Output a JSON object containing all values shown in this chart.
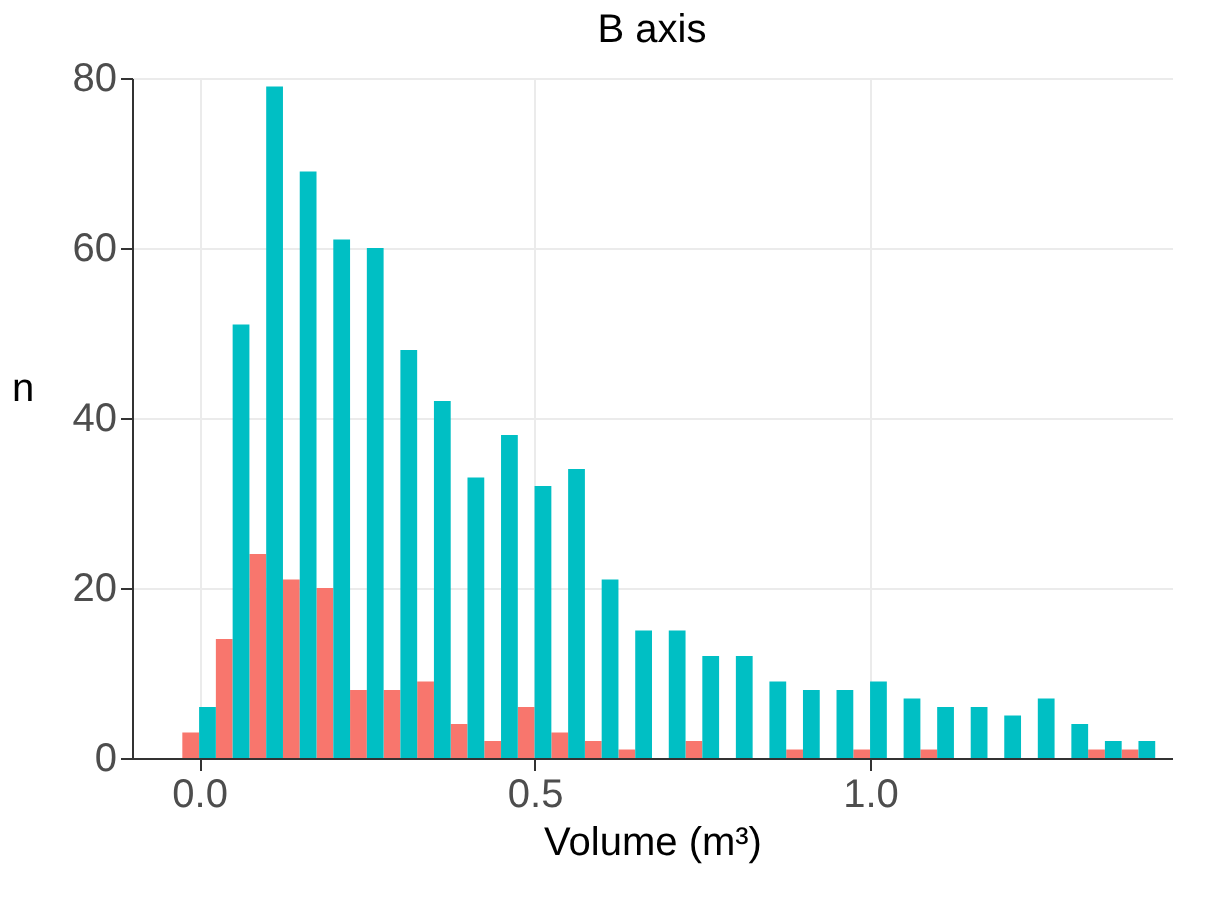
{
  "chart_data": {
    "type": "histogram",
    "title": "B axis",
    "xlabel": "Volume (m³)",
    "ylabel": "n",
    "bins": [
      -0.025,
      0.025,
      0.075,
      0.125,
      0.175,
      0.225,
      0.275,
      0.325,
      0.375,
      0.425,
      0.475,
      0.525,
      0.575,
      0.625,
      0.675,
      0.725,
      0.775,
      0.825,
      0.875,
      0.925,
      0.975,
      1.025,
      1.075,
      1.125,
      1.175,
      1.225,
      1.275,
      1.325,
      1.375,
      1.425
    ],
    "series": [
      {
        "color": "#f8766d",
        "values": [
          3,
          14,
          24,
          21,
          20,
          8,
          8,
          9,
          4,
          2,
          6,
          3,
          2,
          1,
          0,
          2,
          0,
          0,
          1,
          0,
          1,
          0,
          1,
          0,
          0,
          0,
          0,
          1,
          1
        ]
      },
      {
        "color": "#00bfc4",
        "values": [
          6,
          51,
          79,
          69,
          61,
          60,
          48,
          42,
          33,
          38,
          32,
          34,
          21,
          15,
          15,
          12,
          12,
          9,
          8,
          8,
          9,
          7,
          6,
          6,
          5,
          7,
          4,
          2,
          2
        ]
      }
    ],
    "xlim": [
      -0.1,
      1.45
    ],
    "ylim": [
      0,
      80
    ],
    "xticks": [
      {
        "value": 0,
        "label": "0.0"
      },
      {
        "value": 0.5,
        "label": "0.5"
      },
      {
        "value": 1,
        "label": "1.0"
      }
    ],
    "yticks": [
      0,
      20,
      40,
      60,
      80
    ],
    "grid": true,
    "legend": false
  }
}
